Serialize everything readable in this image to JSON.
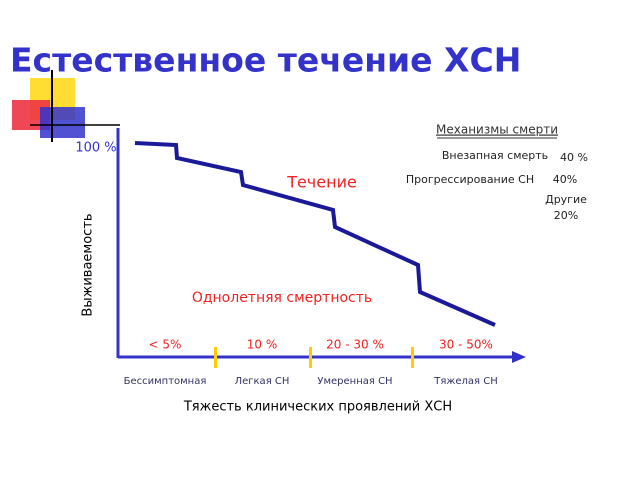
{
  "title": "Естественное течение ХСН",
  "y_axis_label": "Выживаемость",
  "y_start_label": "100 %",
  "curve_label": "Течение",
  "mortality_label": "Однолетняя смертность",
  "mechanisms": {
    "title": "Механизмы смерти",
    "items": [
      {
        "name": "Внезапная смерть",
        "value": "40 %"
      },
      {
        "name": "Прогрессирование СН",
        "value": "40%"
      },
      {
        "name": "Другие",
        "value": "20%"
      }
    ]
  },
  "stages": [
    {
      "mortality": "< 5%",
      "name": "Бессимптомная"
    },
    {
      "mortality": "10 %",
      "name": "Легкая СН"
    },
    {
      "mortality": "20 - 30 %",
      "name": "Умеренная СН"
    },
    {
      "mortality": "30 - 50%",
      "name": "Тяжелая СН"
    }
  ],
  "x_axis_label": "Тяжесть клинических проявлений ХСН"
}
